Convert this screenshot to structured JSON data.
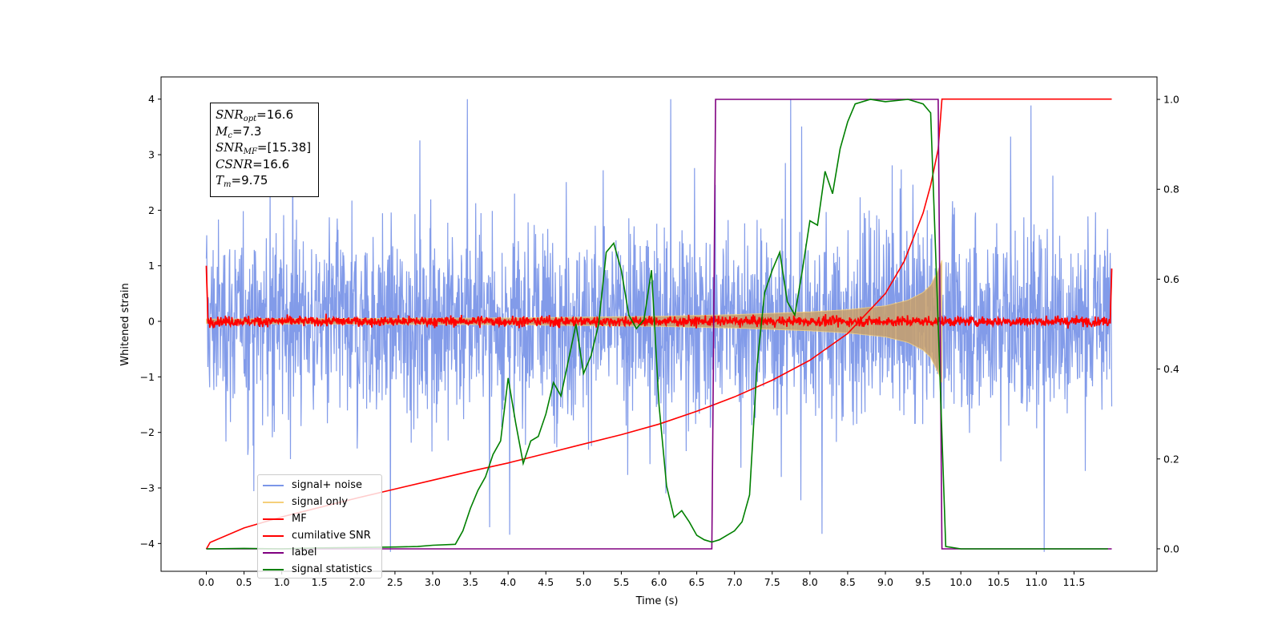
{
  "chart_data": {
    "type": "line",
    "xlabel": "Time (s)",
    "ylabel": "Whitened strain",
    "xlim": [
      -0.6,
      12.6
    ],
    "ylim": [
      -4.5,
      4.4
    ],
    "y2lim": [
      -0.05,
      1.05
    ],
    "xticks": [
      "0.0",
      "0.5",
      "1.0",
      "1.5",
      "2.0",
      "2.5",
      "3.0",
      "3.5",
      "4.0",
      "4.5",
      "5.0",
      "5.5",
      "6.0",
      "6.5",
      "7.0",
      "7.5",
      "8.0",
      "8.5",
      "9.0",
      "9.5",
      "10.0",
      "10.5",
      "11.0",
      "11.5"
    ],
    "yticks": [
      "4",
      "3",
      "2",
      "1",
      "0",
      "−1",
      "−2",
      "−3",
      "−4"
    ],
    "y2ticks": [
      "1.0",
      "0.8",
      "0.6",
      "0.4",
      "0.2",
      "0.0"
    ],
    "grid": false,
    "legend_position": "lower left",
    "stats_box": {
      "snr_opt": "=16.6",
      "mc": "=7.3",
      "snr_mf": "=[15.38]",
      "csnr": "=16.6",
      "tm": "=9.75"
    },
    "series": [
      {
        "name": "signal+ noise",
        "axis": "left",
        "color": "#7b96e8",
        "description_values": "noise band roughly ±2.5 with spikes to ±4, t from 0 to 12"
      },
      {
        "name": "signal only",
        "axis": "left",
        "color": "#f5cf7a",
        "amplitude": {
          "t": [
            0.0,
            4.0,
            6.0,
            7.0,
            8.0,
            8.5,
            9.0,
            9.3,
            9.5,
            9.6,
            9.7,
            9.75
          ],
          "a": [
            0.04,
            0.06,
            0.09,
            0.12,
            0.17,
            0.21,
            0.28,
            0.38,
            0.52,
            0.65,
            0.92,
            1.1
          ]
        }
      },
      {
        "name": "MF",
        "axis": "left",
        "color": "#ff0000",
        "description_values": "near 0 with small noise (±0.15), edges rise to 1.0 at t=0 and t=12"
      },
      {
        "name": "cumilative SNR",
        "axis": "left",
        "color": "#ff0000",
        "x": [
          0.0,
          0.05,
          0.5,
          1.0,
          1.5,
          2.0,
          2.5,
          3.0,
          3.5,
          4.0,
          4.5,
          5.0,
          5.5,
          6.0,
          6.5,
          7.0,
          7.5,
          8.0,
          8.5,
          9.0,
          9.25,
          9.5,
          9.6,
          9.7,
          9.75,
          12.0
        ],
        "y": [
          -4.1,
          -3.98,
          -3.72,
          -3.52,
          -3.35,
          -3.18,
          -3.02,
          -2.86,
          -2.7,
          -2.55,
          -2.38,
          -2.21,
          -2.04,
          -1.85,
          -1.62,
          -1.36,
          -1.06,
          -0.7,
          -0.22,
          0.5,
          1.08,
          1.95,
          2.45,
          3.1,
          4.0,
          4.0
        ]
      },
      {
        "name": "label",
        "axis": "right",
        "color": "#800080",
        "x": [
          0.0,
          6.7,
          6.75,
          9.7,
          9.75,
          12.0
        ],
        "y": [
          0,
          0,
          1,
          1,
          0,
          0
        ]
      },
      {
        "name": "signal statistics",
        "axis": "right",
        "color": "#008000",
        "x": [
          0.0,
          0.5,
          1.0,
          1.5,
          2.0,
          2.5,
          2.8,
          3.0,
          3.3,
          3.4,
          3.5,
          3.6,
          3.7,
          3.8,
          3.9,
          4.0,
          4.1,
          4.2,
          4.3,
          4.4,
          4.5,
          4.6,
          4.7,
          4.8,
          4.9,
          5.0,
          5.1,
          5.2,
          5.3,
          5.4,
          5.5,
          5.6,
          5.7,
          5.8,
          5.9,
          6.0,
          6.1,
          6.2,
          6.3,
          6.4,
          6.5,
          6.6,
          6.7,
          6.8,
          6.9,
          7.0,
          7.1,
          7.2,
          7.3,
          7.4,
          7.5,
          7.6,
          7.7,
          7.8,
          7.9,
          8.0,
          8.1,
          8.2,
          8.3,
          8.4,
          8.5,
          8.6,
          8.8,
          9.0,
          9.3,
          9.5,
          9.6,
          9.7,
          9.8,
          10.0,
          11.0,
          11.95
        ],
        "y": [
          0.0,
          0.001,
          0.0,
          0.002,
          0.003,
          0.004,
          0.005,
          0.008,
          0.01,
          0.04,
          0.09,
          0.13,
          0.16,
          0.21,
          0.24,
          0.38,
          0.28,
          0.19,
          0.24,
          0.25,
          0.3,
          0.37,
          0.34,
          0.42,
          0.5,
          0.39,
          0.43,
          0.5,
          0.66,
          0.68,
          0.62,
          0.52,
          0.49,
          0.51,
          0.62,
          0.32,
          0.14,
          0.07,
          0.085,
          0.06,
          0.03,
          0.02,
          0.015,
          0.02,
          0.03,
          0.04,
          0.06,
          0.12,
          0.41,
          0.57,
          0.62,
          0.66,
          0.55,
          0.52,
          0.62,
          0.73,
          0.72,
          0.84,
          0.79,
          0.89,
          0.95,
          0.99,
          1.0,
          0.995,
          1.0,
          0.99,
          0.97,
          0.5,
          0.005,
          0.0,
          0.0,
          0.0
        ]
      }
    ]
  }
}
